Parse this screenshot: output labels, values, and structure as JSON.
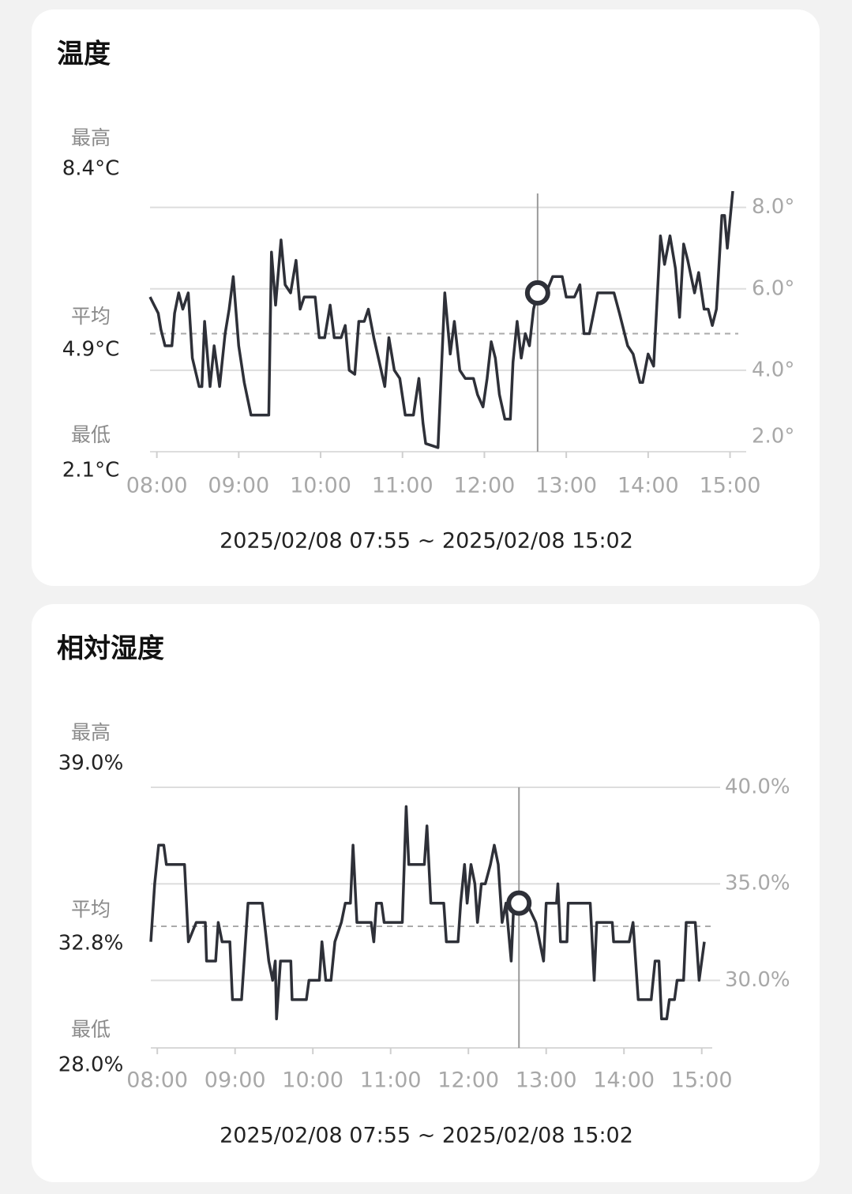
{
  "chart_data": [
    {
      "type": "line",
      "title": "温度",
      "subtitle": "2025/02/08 07:55 ~ 2025/02/08 15:02",
      "stats": [
        {
          "name": "最高",
          "value": 8.4,
          "value_label": "8.4°C"
        },
        {
          "name": "平均",
          "value": 4.9,
          "value_label": "4.9°C"
        },
        {
          "name": "最低",
          "value": 2.1,
          "value_label": "2.1°C"
        }
      ],
      "color": "#2e3038",
      "x": [
        "07:55",
        "07:58",
        "08:01",
        "08:03",
        "08:06",
        "08:11",
        "08:13",
        "08:16",
        "08:19",
        "08:23",
        "08:26",
        "08:31",
        "08:33",
        "08:35",
        "08:39",
        "08:42",
        "08:46",
        "08:50",
        "08:53",
        "08:56",
        "09:00",
        "09:04",
        "09:09",
        "09:22",
        "09:24",
        "09:27",
        "09:31",
        "09:34",
        "09:38",
        "09:42",
        "09:45",
        "09:48",
        "09:56",
        "09:59",
        "10:03",
        "10:07",
        "10:10",
        "10:15",
        "10:18",
        "10:21",
        "10:25",
        "10:28",
        "10:32",
        "10:35",
        "10:39",
        "10:43",
        "10:47",
        "10:50",
        "10:54",
        "10:58",
        "11:02",
        "11:08",
        "11:12",
        "11:15",
        "11:17",
        "11:26",
        "11:31",
        "11:35",
        "11:38",
        "11:42",
        "11:46",
        "11:52",
        "11:55",
        "11:59",
        "12:02",
        "12:05",
        "12:08",
        "12:11",
        "12:15",
        "12:19",
        "12:21",
        "12:24",
        "12:27",
        "12:30",
        "12:33",
        "12:36",
        "12:39",
        "12:44",
        "12:50",
        "12:57",
        "13:00",
        "13:06",
        "13:10",
        "13:13",
        "13:17",
        "13:20",
        "13:23",
        "13:35",
        "13:39",
        "13:45",
        "13:49",
        "13:54",
        "13:56",
        "14:00",
        "14:04",
        "14:09",
        "14:12",
        "14:16",
        "14:20",
        "14:23",
        "14:26",
        "14:29",
        "14:34",
        "14:37",
        "14:41",
        "14:44",
        "14:47",
        "14:50",
        "14:54",
        "14:56",
        "14:58",
        "15:02"
      ],
      "values": [
        5.8,
        5.6,
        5.4,
        5.0,
        4.6,
        4.6,
        5.4,
        5.9,
        5.5,
        5.9,
        4.3,
        3.6,
        3.6,
        5.2,
        3.6,
        4.6,
        3.6,
        4.9,
        5.5,
        6.3,
        4.6,
        3.7,
        2.9,
        2.9,
        6.9,
        5.6,
        7.2,
        6.1,
        5.9,
        6.7,
        5.5,
        5.8,
        5.8,
        4.8,
        4.8,
        5.6,
        4.8,
        4.8,
        5.1,
        4.0,
        3.9,
        5.2,
        5.2,
        5.5,
        4.8,
        4.2,
        3.6,
        4.8,
        4.0,
        3.8,
        2.9,
        2.9,
        3.8,
        2.7,
        2.2,
        2.1,
        5.9,
        4.4,
        5.2,
        4.0,
        3.8,
        3.8,
        3.4,
        3.1,
        3.8,
        4.7,
        4.3,
        3.4,
        2.8,
        2.8,
        4.2,
        5.2,
        4.3,
        4.9,
        4.6,
        5.5,
        5.9,
        5.8,
        6.3,
        6.3,
        5.8,
        5.8,
        6.1,
        4.9,
        4.9,
        5.4,
        5.9,
        5.9,
        5.4,
        4.6,
        4.4,
        3.7,
        3.7,
        4.4,
        4.1,
        7.3,
        6.6,
        7.3,
        6.5,
        5.3,
        7.1,
        6.7,
        5.9,
        6.4,
        5.5,
        5.5,
        5.1,
        5.5,
        7.8,
        7.8,
        7.0,
        8.4
      ],
      "xlim": [
        "07:55",
        "15:02"
      ],
      "xticks": [
        "08:00",
        "09:00",
        "10:00",
        "11:00",
        "12:00",
        "13:00",
        "14:00",
        "15:00"
      ],
      "ylim": [
        2,
        8.4
      ],
      "yticks": [
        {
          "value": 2,
          "label": "2.0°"
        },
        {
          "value": 4,
          "label": "4.0°"
        },
        {
          "value": 6,
          "label": "6.0°"
        },
        {
          "value": 8,
          "label": "8.0°"
        }
      ],
      "grid": true,
      "highlight": {
        "x": "12:39",
        "value": 5.9
      }
    },
    {
      "type": "line",
      "title": "相対湿度",
      "subtitle": "2025/02/08 07:55 ~ 2025/02/08 15:02",
      "stats": [
        {
          "name": "最高",
          "value": 39.0,
          "value_label": "39.0%"
        },
        {
          "name": "平均",
          "value": 32.8,
          "value_label": "32.8%"
        },
        {
          "name": "最低",
          "value": 28.0,
          "value_label": "28.0%"
        }
      ],
      "color": "#2e3038",
      "x": [
        "07:55",
        "07:58",
        "08:01",
        "08:05",
        "08:07",
        "08:21",
        "08:24",
        "08:30",
        "08:37",
        "08:38",
        "08:45",
        "08:47",
        "08:50",
        "08:56",
        "08:58",
        "09:05",
        "09:07",
        "09:10",
        "09:21",
        "09:26",
        "09:29",
        "09:31",
        "09:32",
        "09:35",
        "09:43",
        "09:44",
        "09:55",
        "09:57",
        "10:05",
        "10:07",
        "10:10",
        "10:14",
        "10:17",
        "10:22",
        "10:25",
        "10:29",
        "10:31",
        "10:34",
        "10:45",
        "10:47",
        "10:49",
        "10:53",
        "10:55",
        "11:09",
        "11:12",
        "11:14",
        "11:26",
        "11:28",
        "11:31",
        "11:41",
        "11:43",
        "11:52",
        "11:54",
        "11:57",
        "11:59",
        "12:02",
        "12:05",
        "12:07",
        "12:10",
        "12:13",
        "12:17",
        "12:20",
        "12:23",
        "12:26",
        "12:29",
        "12:33",
        "12:35",
        "12:39",
        "12:45",
        "12:52",
        "12:58",
        "13:00",
        "13:08",
        "13:09",
        "13:11",
        "13:16",
        "13:17",
        "13:34",
        "13:37",
        "13:39",
        "13:51",
        "13:52",
        "14:04",
        "14:07",
        "14:09",
        "14:11",
        "14:21",
        "14:24",
        "14:27",
        "14:29",
        "14:33",
        "14:35",
        "14:39",
        "14:41",
        "14:46",
        "14:48",
        "14:55",
        "14:58",
        "15:02"
      ],
      "values": [
        32,
        35,
        37,
        37,
        36,
        36,
        32,
        33,
        33,
        31,
        31,
        33,
        32,
        32,
        29,
        29,
        31,
        34,
        34,
        31,
        30,
        31,
        28,
        31,
        31,
        29,
        29,
        30,
        30,
        32,
        30,
        30,
        32,
        33,
        34,
        34,
        37,
        33,
        33,
        32,
        34,
        34,
        33,
        33,
        39,
        36,
        36,
        38,
        34,
        34,
        32,
        32,
        34,
        36,
        34,
        36,
        35,
        33,
        35,
        35,
        36,
        37,
        36,
        33,
        34,
        31,
        34,
        34,
        34,
        33,
        31,
        34,
        34,
        35,
        32,
        32,
        34,
        34,
        30,
        33,
        33,
        32,
        32,
        33,
        31,
        29,
        29,
        31,
        31,
        28,
        28,
        29,
        29,
        30,
        30,
        33,
        33,
        30,
        32
      ],
      "xlim": [
        "07:55",
        "15:02"
      ],
      "xticks": [
        "08:00",
        "09:00",
        "10:00",
        "11:00",
        "12:00",
        "13:00",
        "14:00",
        "15:00"
      ],
      "ylim": [
        26.5,
        40
      ],
      "yticks": [
        {
          "value": 30,
          "label": "30.0%"
        },
        {
          "value": 35,
          "label": "35.0%"
        },
        {
          "value": 40,
          "label": "40.0%"
        }
      ],
      "grid": true,
      "highlight": {
        "x": "12:39",
        "value": 34
      }
    }
  ]
}
